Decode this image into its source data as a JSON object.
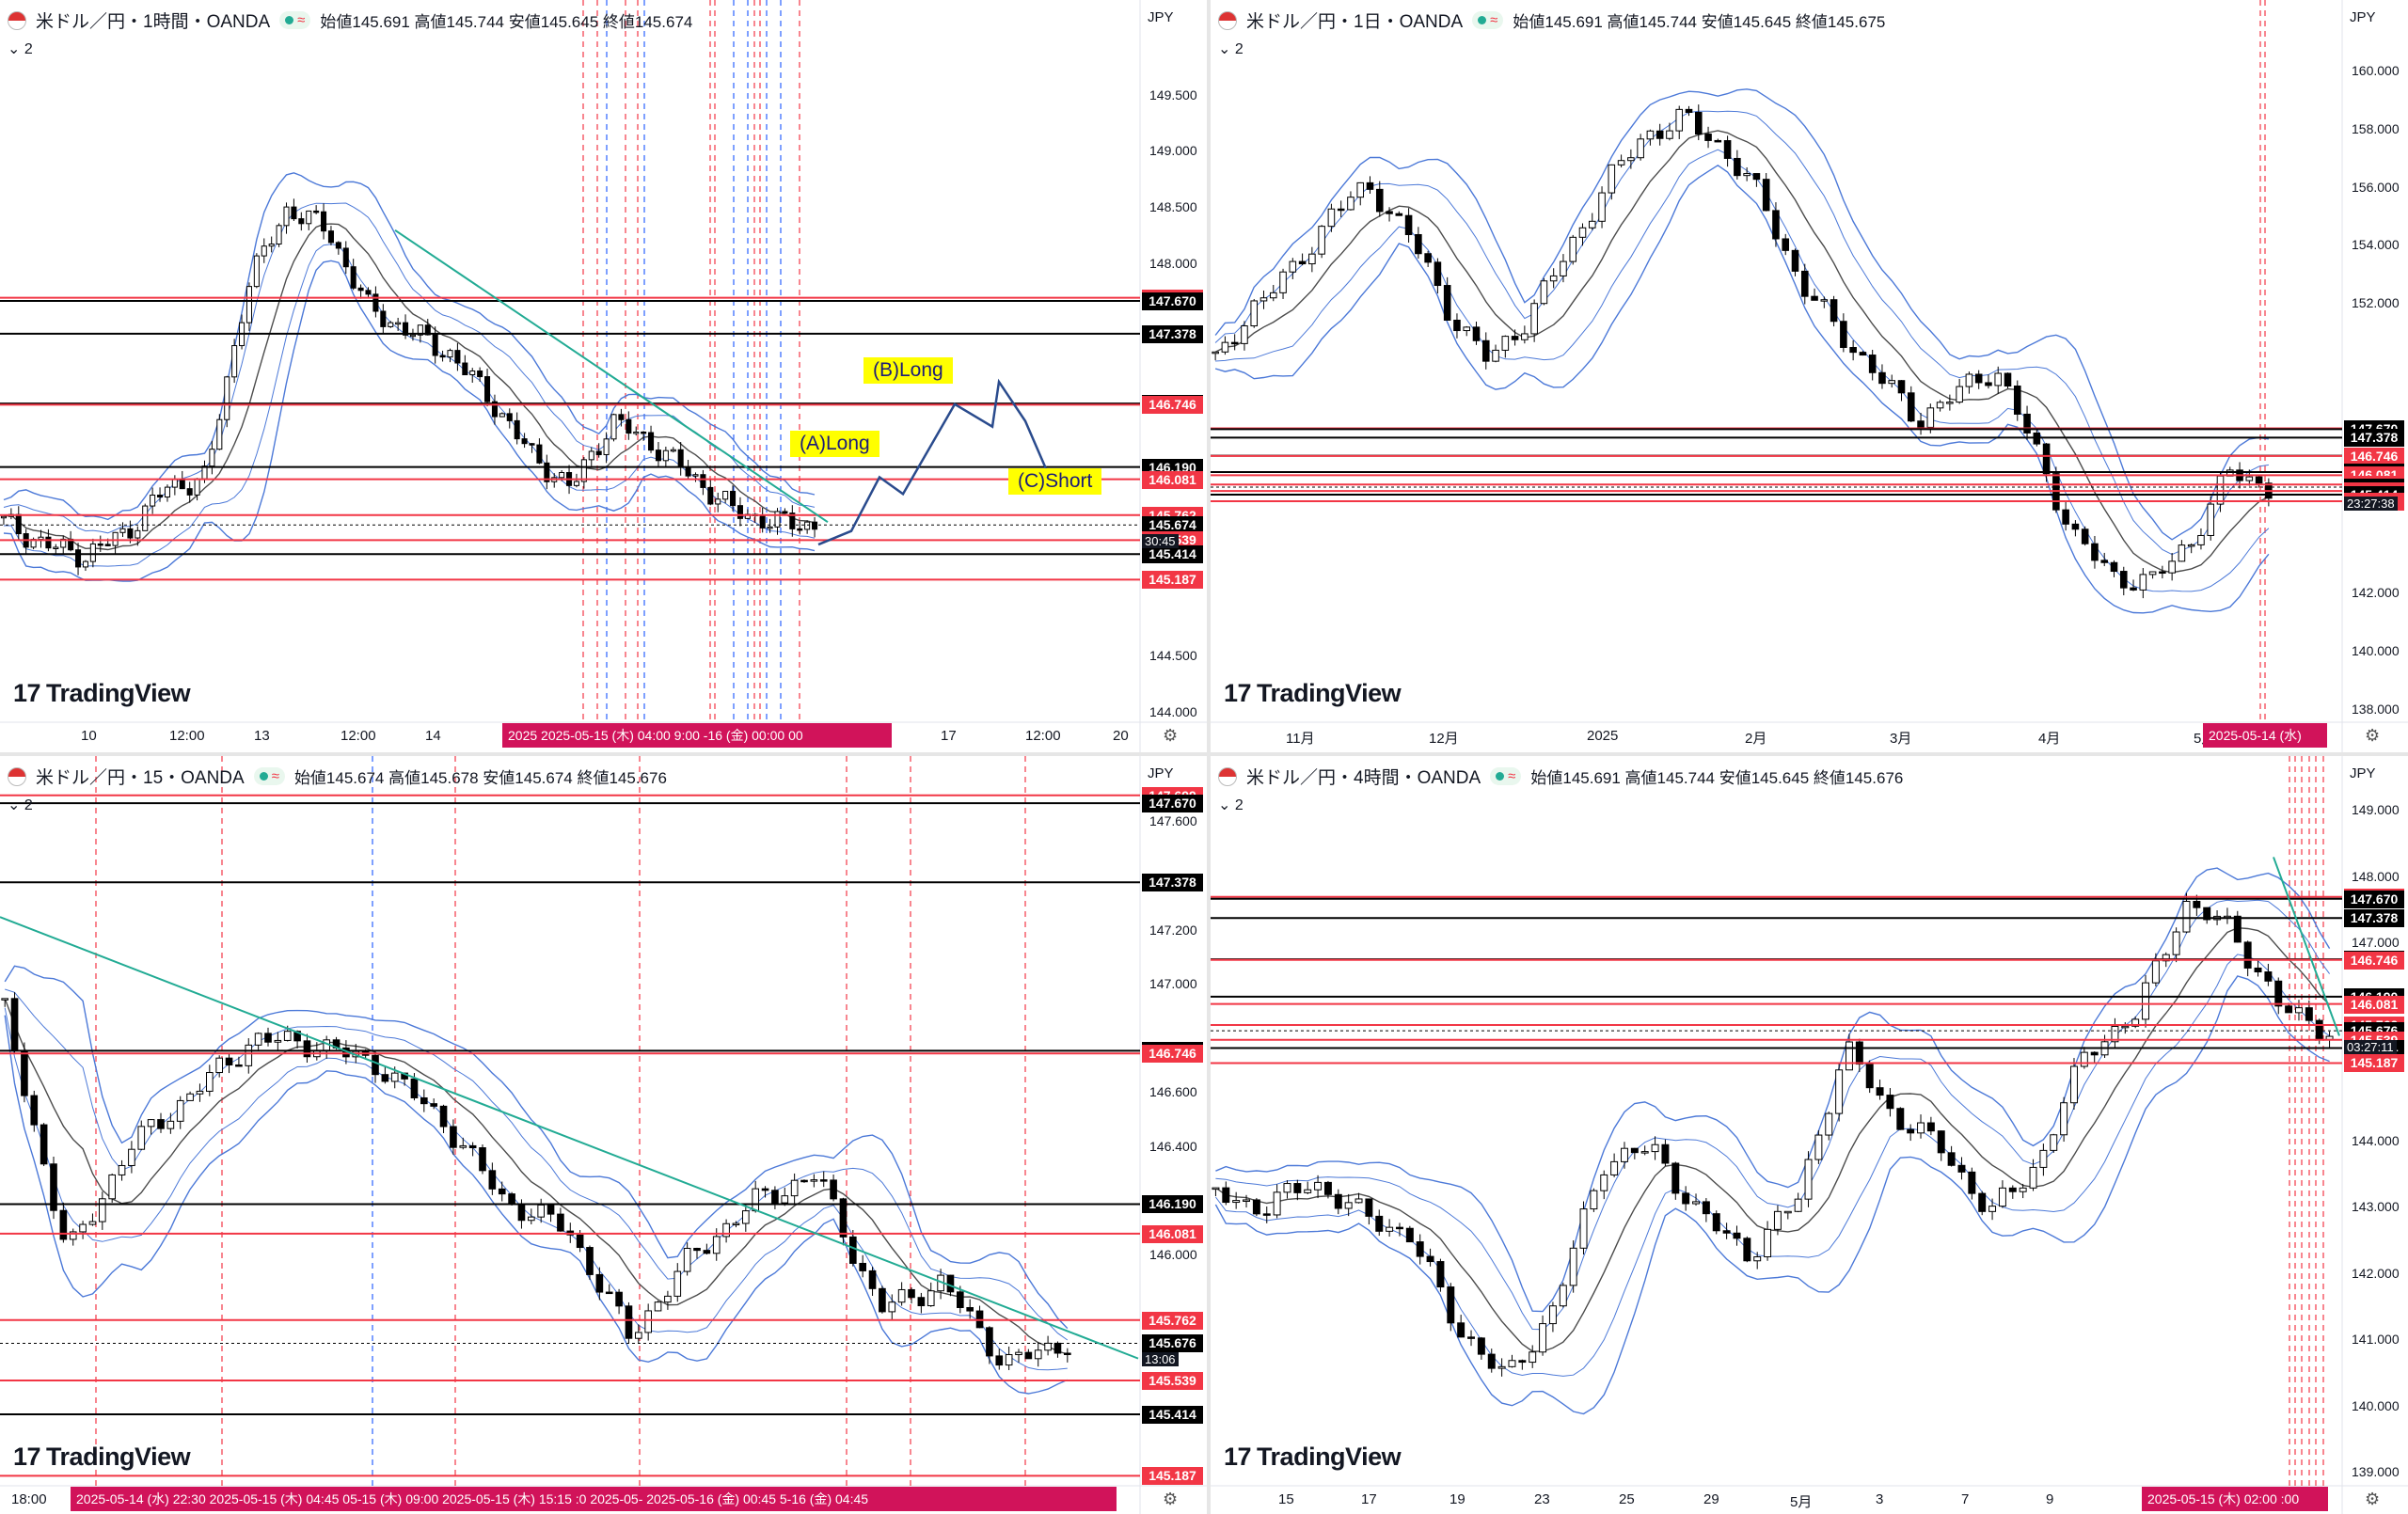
{
  "panels": [
    {
      "symbol": "米ドル／円・1時間・OANDA",
      "ohlc": "始値145.691 高値145.744 安値145.645 終値145.674",
      "sub": "⌄ 2",
      "currency": "JPY",
      "logo": "TradingView",
      "ymin": 143.9,
      "ymax": 150.1,
      "ticks": [
        "144.000",
        "144.500",
        "148.000",
        "148.500",
        "149.000",
        "149.500"
      ],
      "levels": [
        {
          "v": 147.699,
          "t": "147.699",
          "c": "#f23645"
        },
        {
          "v": 147.67,
          "t": "147.670",
          "c": "#000000"
        },
        {
          "v": 147.378,
          "t": "147.378",
          "c": "#000000"
        },
        {
          "v": 146.756,
          "t": "146.756",
          "c": "#000000"
        },
        {
          "v": 146.746,
          "t": "146.746",
          "c": "#f23645"
        },
        {
          "v": 146.19,
          "t": "146.190",
          "c": "#000000"
        },
        {
          "v": 146.081,
          "t": "146.081",
          "c": "#f23645"
        },
        {
          "v": 145.762,
          "t": "145.762",
          "c": "#f23645"
        },
        {
          "v": 145.674,
          "t": "145.674",
          "c": "#000000"
        },
        {
          "v": 145.539,
          "t": "145.539",
          "c": "#f23645"
        },
        {
          "v": 145.414,
          "t": "145.414",
          "c": "#000000"
        },
        {
          "v": 145.187,
          "t": "145.187",
          "c": "#f23645"
        }
      ],
      "countdown": "30:45",
      "xticks": [
        "10",
        "12:00",
        "13",
        "12:00",
        "14",
        "17",
        "12:00",
        "20"
      ],
      "xsel": "2025  2025-05-15 (木) 04:00  9:00  -16 (金)  00:00  00",
      "annotations": [
        "(A)Long",
        "(B)Long",
        "(C)Short"
      ]
    },
    {
      "symbol": "米ドル／円・1日・OANDA",
      "ohlc": "始値145.691 高値145.744 安値145.645 終値145.675",
      "sub": "⌄ 2",
      "currency": "JPY",
      "logo": "TradingView",
      "ymin": 137.5,
      "ymax": 161.5,
      "ticks": [
        "138.000",
        "140.000",
        "142.000",
        "152.000",
        "154.000",
        "156.000",
        "158.000",
        "160.000"
      ],
      "levels": [
        {
          "v": 147.699,
          "t": "147.699",
          "c": "#f23645"
        },
        {
          "v": 147.67,
          "t": "147.670",
          "c": "#000000"
        },
        {
          "v": 147.378,
          "t": "147.378",
          "c": "#000000"
        },
        {
          "v": 146.756,
          "t": "146.756",
          "c": "#000000"
        },
        {
          "v": 146.746,
          "t": "146.746",
          "c": "#f23645"
        },
        {
          "v": 146.19,
          "t": "146.190",
          "c": "#000000"
        },
        {
          "v": 146.081,
          "t": "146.081",
          "c": "#f23645"
        },
        {
          "v": 145.762,
          "t": "145.762",
          "c": "#f23645"
        },
        {
          "v": 145.675,
          "t": "145.675",
          "c": "#000000"
        },
        {
          "v": 145.539,
          "t": "145.539",
          "c": "#f23645"
        },
        {
          "v": 145.414,
          "t": "145.414",
          "c": "#000000"
        },
        {
          "v": 145.187,
          "t": "145.187",
          "c": "#f23645"
        }
      ],
      "countdown": "23:27:38",
      "xticks": [
        "11月",
        "12月",
        "2025",
        "2月",
        "3月",
        "4月",
        "5月"
      ],
      "xsel": "2025-05-14 (水)",
      "annotations": []
    },
    {
      "symbol": "米ドル／円・15・OANDA",
      "ohlc": "始値145.674 高値145.678 安値145.674 終値145.676",
      "sub": "⌄ 2",
      "currency": "JPY",
      "logo": "TradingView",
      "ymin": 145.15,
      "ymax": 147.74,
      "ticks": [
        "146.000",
        "146.400",
        "146.600",
        "147.000",
        "147.200",
        "147.600"
      ],
      "levels": [
        {
          "v": 147.699,
          "t": "147.699",
          "c": "#f23645"
        },
        {
          "v": 147.67,
          "t": "147.670",
          "c": "#000000"
        },
        {
          "v": 147.378,
          "t": "147.378",
          "c": "#000000"
        },
        {
          "v": 146.756,
          "t": "146.756",
          "c": "#000000"
        },
        {
          "v": 146.746,
          "t": "146.746",
          "c": "#f23645"
        },
        {
          "v": 146.19,
          "t": "146.190",
          "c": "#000000"
        },
        {
          "v": 146.081,
          "t": "146.081",
          "c": "#f23645"
        },
        {
          "v": 145.762,
          "t": "145.762",
          "c": "#f23645"
        },
        {
          "v": 145.676,
          "t": "145.676",
          "c": "#000000"
        },
        {
          "v": 145.539,
          "t": "145.539",
          "c": "#f23645"
        },
        {
          "v": 145.414,
          "t": "145.414",
          "c": "#000000"
        },
        {
          "v": 145.187,
          "t": "145.187",
          "c": "#f23645"
        }
      ],
      "countdown": "13:06",
      "xticks": [
        "18:00"
      ],
      "xsel": "2025-05-14 (水)  22:30    2025-05-15 (木)  04:45   05-15 (木)  09:00     2025-05-15 (木)  15:15  :0     2025-05-  2025-05-16 (金)   00:45   5-16 (金)   04:45",
      "annotations": []
    },
    {
      "symbol": "米ドル／円・4時間・OANDA",
      "ohlc": "始値145.691 高値145.744 安値145.645 終値145.676",
      "sub": "⌄ 2",
      "currency": "JPY",
      "logo": "TradingView",
      "ymin": 138.8,
      "ymax": 149.4,
      "ticks": [
        "139.000",
        "140.000",
        "141.000",
        "142.000",
        "143.000",
        "144.000",
        "147.000",
        "148.000",
        "149.000"
      ],
      "levels": [
        {
          "v": 147.699,
          "t": "147.699",
          "c": "#f23645"
        },
        {
          "v": 147.67,
          "t": "147.670",
          "c": "#000000"
        },
        {
          "v": 147.378,
          "t": "147.378",
          "c": "#000000"
        },
        {
          "v": 146.756,
          "t": "146.756",
          "c": "#000000"
        },
        {
          "v": 146.746,
          "t": "146.746",
          "c": "#f23645"
        },
        {
          "v": 146.19,
          "t": "146.190",
          "c": "#000000"
        },
        {
          "v": 146.081,
          "t": "146.081",
          "c": "#f23645"
        },
        {
          "v": 145.762,
          "t": "145.762",
          "c": "#f23645"
        },
        {
          "v": 145.676,
          "t": "145.676",
          "c": "#000000"
        },
        {
          "v": 145.539,
          "t": "145.539",
          "c": "#f23645"
        },
        {
          "v": 145.414,
          "t": "145.414",
          "c": "#000000"
        },
        {
          "v": 145.187,
          "t": "145.187",
          "c": "#f23645"
        }
      ],
      "countdown": "03:27:11",
      "xticks": [
        "15",
        "17",
        "19",
        "23",
        "25",
        "29",
        "5月",
        "3",
        "7",
        "9"
      ],
      "xsel": "2025-05-15 (木)  02:00  :00",
      "annotations": []
    }
  ],
  "chart_data": [
    {
      "type": "line",
      "title": "米ドル／円・1時間・OANDA",
      "series": [
        {
          "values": [
            145.7,
            145.5,
            145.4,
            145.6,
            146.0,
            146.1,
            147.8,
            148.5,
            148.3,
            147.6,
            147.4,
            147.2,
            146.8,
            146.3,
            146.0,
            146.6,
            146.4,
            146.1,
            145.8,
            145.7,
            145.67
          ]
        }
      ]
    },
    {
      "type": "line",
      "title": "米ドル／円・1日・OANDA",
      "series": [
        {
          "values": [
            149.9,
            152.0,
            153.1,
            155.2,
            156.0,
            154.3,
            151.7,
            150.0,
            151.5,
            153.7,
            156.1,
            157.8,
            158.4,
            157.4,
            155.6,
            152.7,
            151.0,
            149.5,
            148.0,
            148.9,
            149.8,
            147.0,
            144.0,
            142.6,
            142.4,
            143.8,
            146.2,
            145.67
          ]
        }
      ]
    },
    {
      "type": "line",
      "title": "米ドル／円・15・OANDA",
      "series": [
        {
          "values": [
            146.9,
            146.0,
            146.4,
            146.6,
            146.8,
            146.78,
            146.7,
            146.5,
            146.2,
            146.1,
            145.7,
            146.0,
            146.2,
            146.3,
            145.8,
            145.9,
            145.6,
            145.68
          ]
        }
      ]
    },
    {
      "type": "line",
      "title": "米ドル／円・4時間・OANDA",
      "series": [
        {
          "values": [
            143.2,
            143.0,
            143.4,
            142.9,
            142.6,
            141.2,
            140.4,
            141.5,
            143.7,
            143.9,
            142.9,
            142.3,
            143.1,
            145.4,
            144.4,
            143.9,
            142.9,
            143.7,
            145.4,
            145.9,
            147.6,
            147.2,
            146.0,
            145.68
          ]
        }
      ]
    }
  ]
}
